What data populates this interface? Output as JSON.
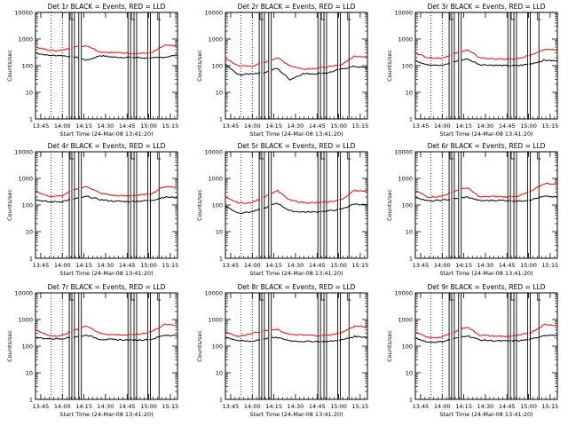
{
  "colors": {
    "events": "#000000",
    "lld": "#ff0000",
    "frame": "#000000",
    "background": "#ffffff"
  },
  "chart_data": [
    {
      "type": "line",
      "title": "Det 1r BLACK = Events, RED = LLD",
      "xlabel": "Start Time (24-Mar-08 13:41:20)",
      "ylabel": "Counts/sec",
      "yscale": "log",
      "ylim": [
        1,
        10000
      ],
      "xlim": [
        13.6889,
        15.3333
      ],
      "xticks": [
        "13:45",
        "14:00",
        "14:15",
        "14:30",
        "14:45",
        "15:00",
        "15:15"
      ],
      "yticks": [
        "1",
        "10",
        "100",
        "1000",
        "10000"
      ],
      "series": [
        {
          "name": "Events",
          "values": [
            300,
            245,
            240,
            215,
            160,
            240,
            210,
            205,
            200,
            190,
            210,
            250
          ]
        },
        {
          "name": "LLD",
          "values": [
            500,
            380,
            370,
            500,
            570,
            330,
            310,
            300,
            290,
            300,
            580,
            540
          ]
        }
      ]
    },
    {
      "type": "line",
      "title": "Det 2r BLACK = Events, RED = LLD",
      "xlabel": "Start Time (24-Mar-08 13:41:20)",
      "ylabel": "Counts/sec",
      "yscale": "log",
      "ylim": [
        1,
        10000
      ],
      "xlim": [
        13.6889,
        15.3333
      ],
      "xticks": [
        "13:45",
        "14:00",
        "14:15",
        "14:30",
        "14:45",
        "15:00",
        "15:15"
      ],
      "yticks": [
        "1",
        "10",
        "100",
        "1000",
        "10000"
      ],
      "series": [
        {
          "name": "Events",
          "values": [
            110,
            45,
            50,
            55,
            80,
            30,
            50,
            50,
            55,
            75,
            95,
            80
          ]
        },
        {
          "name": "LLD",
          "values": [
            180,
            100,
            95,
            130,
            200,
            100,
            75,
            80,
            90,
            110,
            230,
            220
          ]
        }
      ]
    },
    {
      "type": "line",
      "title": "Det 3r BLACK = Events, RED = LLD",
      "xlabel": "Start Time (24-Mar-08 13:41:20)",
      "ylabel": "Counts/sec",
      "yscale": "log",
      "ylim": [
        1,
        10000
      ],
      "xlim": [
        13.6889,
        15.3333
      ],
      "xticks": [
        "13:45",
        "14:00",
        "14:15",
        "14:30",
        "14:45",
        "15:00",
        "15:15"
      ],
      "yticks": [
        "1",
        "10",
        "100",
        "1000",
        "10000"
      ],
      "series": [
        {
          "name": "Events",
          "values": [
            150,
            110,
            100,
            140,
            180,
            110,
            105,
            100,
            100,
            120,
            160,
            150
          ]
        },
        {
          "name": "LLD",
          "values": [
            300,
            200,
            190,
            280,
            400,
            200,
            180,
            175,
            180,
            260,
            420,
            400
          ]
        }
      ]
    },
    {
      "type": "line",
      "title": "Det 4r BLACK = Events, RED = LLD",
      "xlabel": "Start Time (24-Mar-08 13:41:20)",
      "ylabel": "Counts/sec",
      "yscale": "log",
      "ylim": [
        1,
        10000
      ],
      "xlim": [
        13.6889,
        15.3333
      ],
      "xticks": [
        "13:45",
        "14:00",
        "14:15",
        "14:30",
        "14:45",
        "15:00",
        "15:15"
      ],
      "yticks": [
        "1",
        "10",
        "100",
        "1000",
        "10000"
      ],
      "series": [
        {
          "name": "Events",
          "values": [
            160,
            130,
            135,
            170,
            210,
            160,
            140,
            135,
            140,
            150,
            200,
            190
          ]
        },
        {
          "name": "LLD",
          "values": [
            340,
            210,
            215,
            380,
            500,
            280,
            230,
            220,
            230,
            270,
            500,
            470
          ]
        }
      ]
    },
    {
      "type": "line",
      "title": "Det 5r BLACK = Events, RED = LLD",
      "xlabel": "Start Time (24-Mar-08 13:41:20)",
      "ylabel": "Counts/sec",
      "yscale": "log",
      "ylim": [
        1,
        10000
      ],
      "xlim": [
        13.6889,
        15.3333
      ],
      "xticks": [
        "13:45",
        "14:00",
        "14:15",
        "14:30",
        "14:45",
        "15:00",
        "15:15"
      ],
      "yticks": [
        "1",
        "10",
        "100",
        "1000",
        "10000"
      ],
      "series": [
        {
          "name": "Events",
          "values": [
            90,
            50,
            55,
            75,
            120,
            60,
            55,
            55,
            60,
            70,
            110,
            100
          ]
        },
        {
          "name": "LLD",
          "values": [
            190,
            120,
            120,
            200,
            350,
            150,
            125,
            120,
            130,
            160,
            350,
            340
          ]
        }
      ]
    },
    {
      "type": "line",
      "title": "Det 6r BLACK = Events, RED = LLD",
      "xlabel": "Start Time (24-Mar-08 13:41:20)",
      "ylabel": "Counts/sec",
      "yscale": "log",
      "ylim": [
        1,
        10000
      ],
      "xlim": [
        13.6889,
        15.3333
      ],
      "xticks": [
        "13:45",
        "14:00",
        "14:15",
        "14:30",
        "14:45",
        "15:00",
        "15:15"
      ],
      "yticks": [
        "1",
        "10",
        "100",
        "1000",
        "10000"
      ],
      "series": [
        {
          "name": "Events",
          "values": [
            200,
            140,
            150,
            170,
            200,
            145,
            150,
            150,
            140,
            160,
            210,
            200
          ]
        },
        {
          "name": "LLD",
          "values": [
            350,
            200,
            210,
            330,
            450,
            200,
            210,
            200,
            220,
            330,
            650,
            600
          ]
        }
      ]
    },
    {
      "type": "line",
      "title": "Det 7r BLACK = Events, RED = LLD",
      "xlabel": "Start Time (24-Mar-08 13:41:20)",
      "ylabel": "Counts/sec",
      "yscale": "log",
      "ylim": [
        1,
        10000
      ],
      "xlim": [
        13.6889,
        15.3333
      ],
      "xticks": [
        "13:45",
        "14:00",
        "14:15",
        "14:30",
        "14:45",
        "15:00",
        "15:15"
      ],
      "yticks": [
        "1",
        "10",
        "100",
        "1000",
        "10000"
      ],
      "series": [
        {
          "name": "Events",
          "values": [
            210,
            190,
            190,
            220,
            260,
            180,
            175,
            170,
            170,
            180,
            260,
            250
          ]
        },
        {
          "name": "LLD",
          "values": [
            400,
            250,
            245,
            400,
            580,
            300,
            270,
            260,
            280,
            350,
            650,
            600
          ]
        }
      ]
    },
    {
      "type": "line",
      "title": "Det 8r BLACK = Events, RED = LLD",
      "xlabel": "Start Time (24-Mar-08 13:41:20)",
      "ylabel": "Counts/sec",
      "yscale": "log",
      "ylim": [
        1,
        10000
      ],
      "xlim": [
        13.6889,
        15.3333
      ],
      "xticks": [
        "13:45",
        "14:00",
        "14:15",
        "14:30",
        "14:45",
        "15:00",
        "15:15"
      ],
      "yticks": [
        "1",
        "10",
        "100",
        "1000",
        "10000"
      ],
      "series": [
        {
          "name": "Events",
          "values": [
            220,
            160,
            150,
            190,
            210,
            160,
            150,
            150,
            150,
            170,
            230,
            220
          ]
        },
        {
          "name": "LLD",
          "values": [
            350,
            230,
            300,
            380,
            420,
            270,
            260,
            250,
            260,
            320,
            560,
            520
          ]
        }
      ]
    },
    {
      "type": "line",
      "title": "Det 9r BLACK = Events, RED = LLD",
      "xlabel": "Start Time (24-Mar-08 13:41:20)",
      "ylabel": "Counts/sec",
      "yscale": "log",
      "ylim": [
        1,
        10000
      ],
      "xlim": [
        13.6889,
        15.3333
      ],
      "xticks": [
        "13:45",
        "14:00",
        "14:15",
        "14:30",
        "14:45",
        "15:00",
        "15:15"
      ],
      "yticks": [
        "1",
        "10",
        "100",
        "1000",
        "10000"
      ],
      "series": [
        {
          "name": "Events",
          "values": [
            200,
            140,
            145,
            190,
            250,
            170,
            160,
            155,
            160,
            180,
            260,
            250
          ]
        },
        {
          "name": "LLD",
          "values": [
            330,
            210,
            215,
            340,
            530,
            260,
            240,
            230,
            250,
            330,
            650,
            600
          ]
        }
      ]
    }
  ]
}
